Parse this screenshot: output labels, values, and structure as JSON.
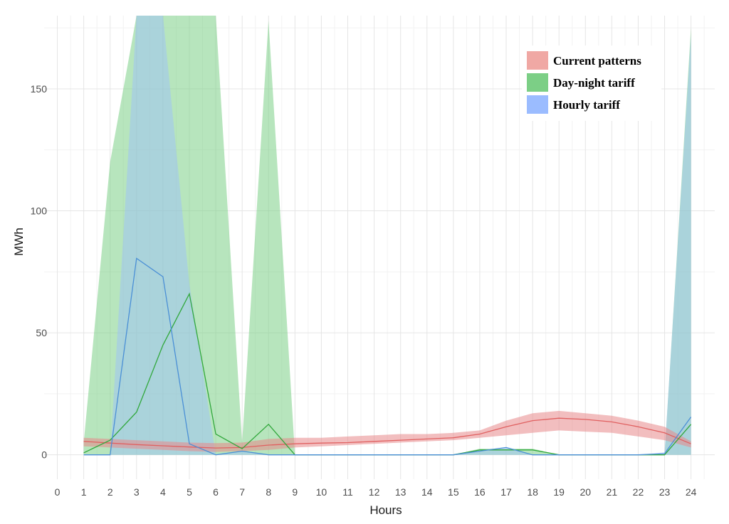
{
  "chart_data": {
    "type": "area",
    "title": "",
    "xlabel": "Hours",
    "ylabel": "MWh",
    "xlim": [
      0,
      24
    ],
    "ylim": [
      -10,
      180
    ],
    "x_ticks": [
      0,
      1,
      2,
      3,
      4,
      5,
      6,
      7,
      8,
      9,
      10,
      11,
      12,
      13,
      14,
      15,
      16,
      17,
      18,
      19,
      20,
      21,
      22,
      23,
      24
    ],
    "y_ticks": [
      0,
      50,
      100,
      150
    ],
    "grid": true,
    "legend": {
      "position": "top-right",
      "entries": [
        "Current patterns",
        "Day-night tariff",
        "Hourly tariff"
      ]
    },
    "x": [
      1,
      2,
      3,
      4,
      5,
      6,
      7,
      8,
      9,
      10,
      11,
      12,
      13,
      14,
      15,
      16,
      17,
      18,
      19,
      20,
      21,
      22,
      23,
      24
    ],
    "series": [
      {
        "name": "Current patterns",
        "color": "#e8888a",
        "line_color": "#e06060",
        "values": [
          5.5,
          4.8,
          4.2,
          3.7,
          3.2,
          2.8,
          3.0,
          4.0,
          4.5,
          4.8,
          5.0,
          5.5,
          6.0,
          6.5,
          7.0,
          8.5,
          11.5,
          14.0,
          15.0,
          14.5,
          13.5,
          11.5,
          9.0,
          4.5
        ],
        "lower": [
          3.5,
          3.0,
          2.5,
          2.0,
          1.5,
          1.2,
          1.5,
          2.0,
          3.0,
          3.5,
          4.0,
          4.5,
          5.0,
          5.5,
          6.0,
          7.0,
          8.0,
          9.0,
          10.0,
          9.5,
          9.0,
          7.5,
          6.0,
          3.0
        ],
        "upper": [
          7.0,
          6.5,
          6.0,
          5.5,
          5.0,
          4.8,
          5.0,
          6.5,
          7.0,
          7.0,
          7.5,
          8.0,
          8.5,
          8.5,
          9.0,
          10.0,
          14.0,
          17.0,
          18.0,
          17.0,
          16.0,
          14.0,
          11.5,
          5.5
        ]
      },
      {
        "name": "Day-night tariff",
        "color": "#7ccf86",
        "line_color": "#31a83c",
        "values": [
          0.8,
          6.0,
          17.5,
          45.0,
          66.0,
          8.5,
          2.5,
          12.5,
          0,
          0,
          0,
          0,
          0,
          0,
          0,
          2.0,
          2.0,
          2.0,
          0,
          0,
          0,
          0,
          0,
          12.5
        ],
        "lower": [
          0,
          0,
          0,
          0,
          0,
          0,
          0,
          0,
          0,
          0,
          0,
          0,
          0,
          0,
          0,
          0,
          0,
          0,
          0,
          0,
          0,
          0,
          0,
          0
        ],
        "upper": [
          5,
          120,
          180,
          180,
          180,
          180,
          5,
          178,
          0,
          0,
          0,
          0,
          0,
          0,
          0,
          2.5,
          2.5,
          2.5,
          0,
          0,
          0,
          0,
          0,
          175
        ]
      },
      {
        "name": "Hourly tariff",
        "color": "#9bbcff",
        "line_color": "#4a8fd6",
        "values": [
          0,
          0,
          80.5,
          73.0,
          4.5,
          0,
          1.5,
          0,
          0,
          0,
          0,
          0,
          0,
          0,
          0,
          1.5,
          3.0,
          0,
          0,
          0,
          0,
          0,
          0.5,
          15.5
        ],
        "lower": [
          0,
          0,
          0,
          0,
          0,
          0,
          0,
          0,
          0,
          0,
          0,
          0,
          0,
          0,
          0,
          0,
          0,
          0,
          0,
          0,
          0,
          0,
          0,
          0
        ],
        "upper": [
          0,
          0,
          180,
          180,
          70,
          0,
          1.5,
          0,
          0,
          0,
          0,
          0,
          0,
          0,
          0,
          1.5,
          3.0,
          0,
          0,
          0,
          0,
          0,
          1.0,
          172
        ]
      }
    ]
  }
}
